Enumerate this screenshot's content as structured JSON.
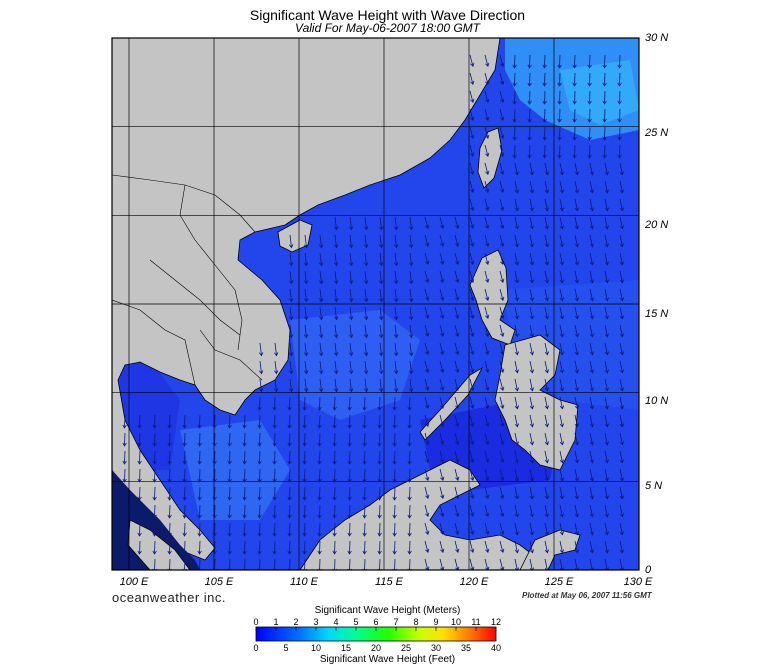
{
  "map": {
    "title": "Significant Wave Height with Wave Direction",
    "subtitle": "Valid For May-06-2007 18:00 GMT",
    "lat_labels": [
      "30 N",
      "25 N",
      "20 N",
      "15 N",
      "10 N",
      "5 N",
      "0"
    ],
    "lon_labels": [
      "100 E",
      "105 E",
      "110 E",
      "115 E",
      "120 E",
      "125 E",
      "130 E"
    ],
    "lon_range": [
      99,
      130
    ],
    "lat_range": [
      0,
      30
    ],
    "brand": "oceanweather inc.",
    "plotted": "Plotted at May 06, 2007 11:56 GMT",
    "colors": {
      "land": "#c4c4c4",
      "ocean_deep": "#1e2fe6",
      "ocean_mid": "#2a55f0",
      "ocean_light": "#2ea0f8",
      "arrow": "#0a1a7a"
    }
  },
  "legend": {
    "meters_title": "Significant Wave Height (Meters)",
    "feet_title": "Significant Wave Height (Feet)",
    "meters_ticks": [
      "0",
      "1",
      "2",
      "3",
      "4",
      "5",
      "6",
      "7",
      "8",
      "9",
      "10",
      "11",
      "12"
    ],
    "feet_ticks": [
      "0",
      "5",
      "10",
      "15",
      "20",
      "25",
      "30",
      "35",
      "40"
    ],
    "meters_max": 12,
    "feet_max": 40
  }
}
